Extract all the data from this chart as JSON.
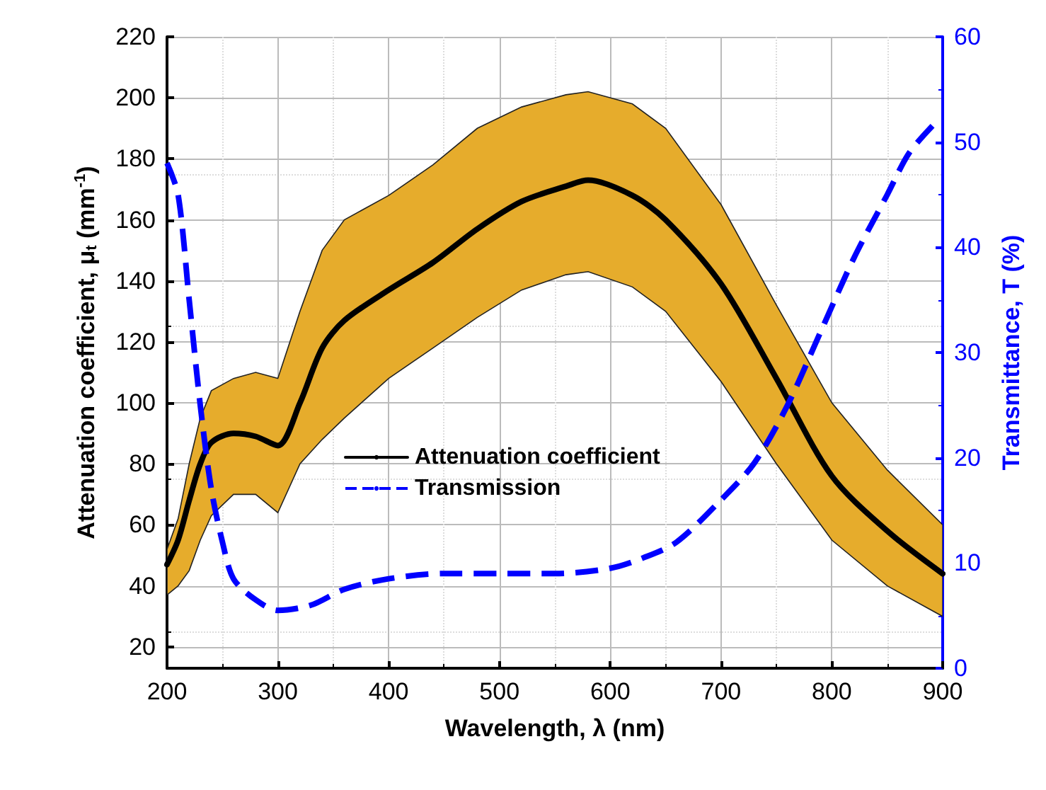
{
  "chart_data": {
    "type": "line",
    "xlabel": "Wavelength, λ (nm)",
    "ylabel": "Attenuation coefficient, μ$_{t}$ (mm$^{-1}$)",
    "y2label": "Transmittance, T (%)",
    "xlim": [
      200,
      900
    ],
    "xticks": [
      200,
      300,
      400,
      500,
      600,
      700,
      800,
      900
    ],
    "ylim": [
      13,
      220
    ],
    "yticks": [
      20,
      40,
      60,
      80,
      100,
      120,
      140,
      160,
      180,
      200,
      220
    ],
    "y2lim": [
      0,
      60
    ],
    "y2ticks": [
      0,
      10,
      20,
      30,
      40,
      50,
      60
    ],
    "grid": true,
    "legend": "center",
    "marker": "none",
    "series": [
      {
        "name": "Attenuation coefficient",
        "color": "#000000",
        "line_style": "solid",
        "x": [
          200,
          210,
          220,
          230,
          240,
          260,
          280,
          300,
          320,
          340,
          360,
          400,
          440,
          480,
          520,
          560,
          580,
          620,
          650,
          700,
          750,
          800,
          850,
          900
        ],
        "values": [
          47,
          55,
          68,
          80,
          87,
          90,
          89,
          86,
          100,
          118,
          127,
          137,
          146,
          157,
          166,
          171,
          173,
          168,
          160,
          139,
          108,
          76,
          58,
          44
        ],
        "lower": [
          37,
          40,
          45,
          55,
          63,
          70,
          70,
          64,
          80,
          88,
          95,
          108,
          118,
          128,
          137,
          142,
          143,
          138,
          130,
          107,
          80,
          55,
          40,
          30
        ],
        "upper": [
          52,
          62,
          80,
          95,
          104,
          108,
          110,
          108,
          130,
          150,
          160,
          168,
          178,
          190,
          197,
          201,
          202,
          198,
          190,
          165,
          132,
          100,
          78,
          60
        ]
      },
      {
        "name": "Transmission",
        "color": "#0000ff",
        "axis": "y2",
        "line_style": "dashed",
        "x": [
          200,
          210,
          220,
          230,
          240,
          250,
          260,
          280,
          300,
          330,
          360,
          400,
          450,
          500,
          550,
          600,
          630,
          660,
          700,
          730,
          760,
          790,
          820,
          850,
          870,
          895
        ],
        "values": [
          48,
          45,
          35,
          25,
          17,
          12,
          8.5,
          6.5,
          5.5,
          6,
          7.5,
          8.5,
          9,
          9,
          9,
          9.5,
          10.5,
          12,
          16,
          19.5,
          25,
          32,
          39,
          45,
          49,
          52
        ]
      }
    ]
  }
}
